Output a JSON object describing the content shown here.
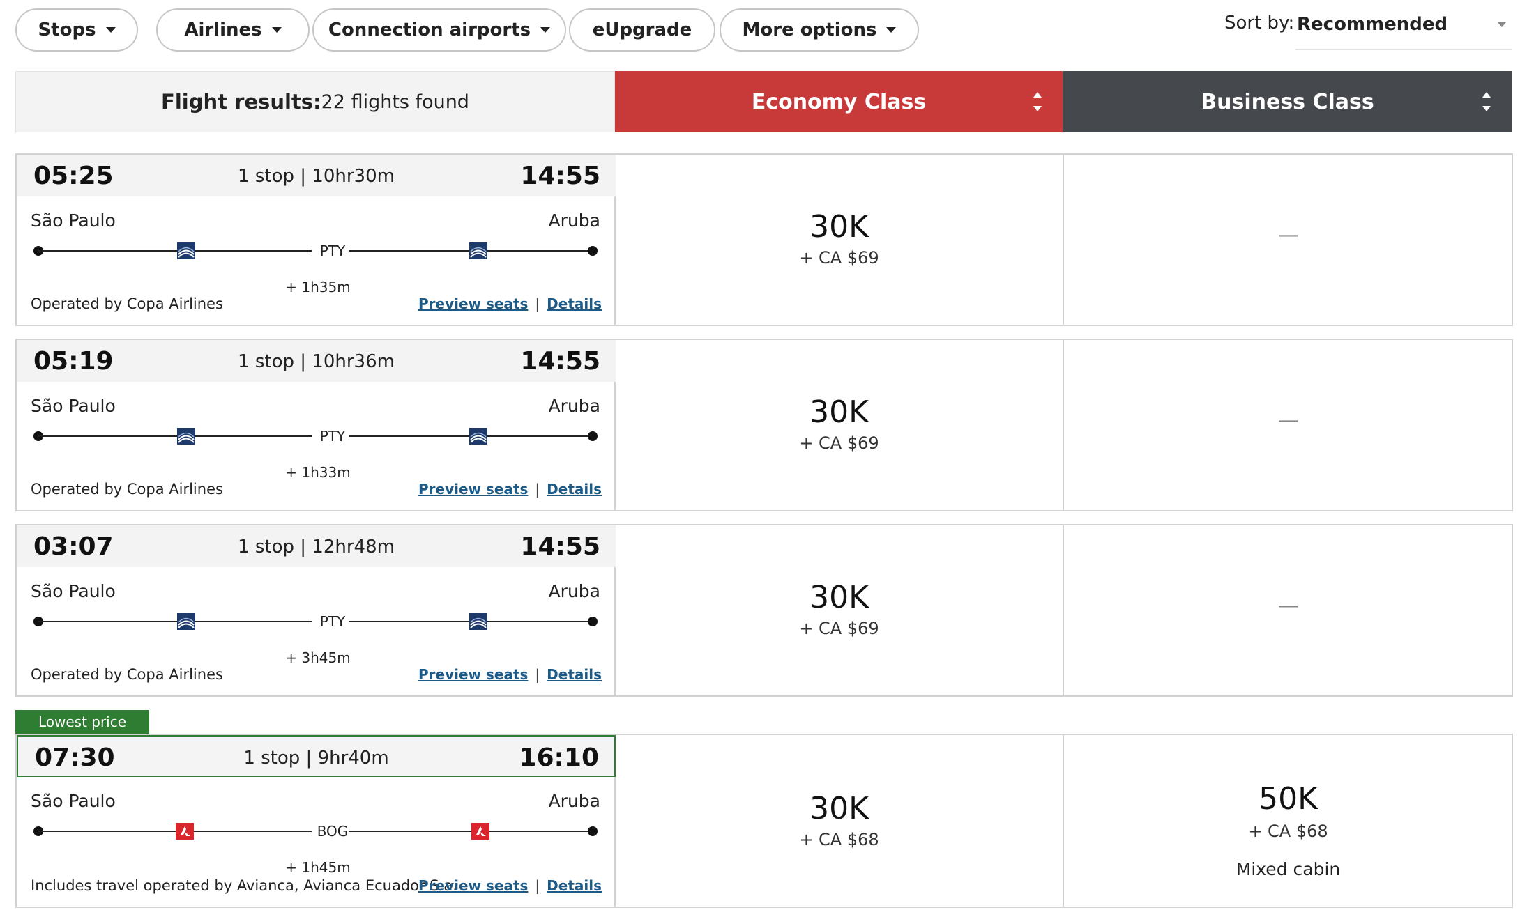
{
  "filters": {
    "stops": "Stops",
    "airlines": "Airlines",
    "connection_airports": "Connection airports",
    "eupgrade": "eUpgrade",
    "more_options": "More options"
  },
  "sort": {
    "label": "Sort by:",
    "value": "Recommended"
  },
  "header": {
    "title": "Flight results:",
    "count": "22 flights found",
    "economy": "Economy Class",
    "business": "Business Class"
  },
  "colors": {
    "economy": "#c8393a",
    "business": "#45494d",
    "lowest_badge": "#2e7d32",
    "link": "#1d5a86"
  },
  "flights": [
    {
      "depart": "05:25",
      "arrive": "14:55",
      "duration": "1 stop | 10hr30m",
      "origin": "São Paulo",
      "destination": "Aruba",
      "stop": "PTY",
      "layover": "+ 1h35m",
      "operated": "Operated by Copa Airlines",
      "airline_icon": "copa-logo-icon",
      "economy_miles": "30K",
      "economy_tax": "+ CA $69",
      "business": "—"
    },
    {
      "depart": "05:19",
      "arrive": "14:55",
      "duration": "1 stop | 10hr36m",
      "origin": "São Paulo",
      "destination": "Aruba",
      "stop": "PTY",
      "layover": "+ 1h33m",
      "operated": "Operated by Copa Airlines",
      "airline_icon": "copa-logo-icon",
      "economy_miles": "30K",
      "economy_tax": "+ CA $69",
      "business": "—"
    },
    {
      "depart": "03:07",
      "arrive": "14:55",
      "duration": "1 stop | 12hr48m",
      "origin": "São Paulo",
      "destination": "Aruba",
      "stop": "PTY",
      "layover": "+ 3h45m",
      "operated": "Operated by Copa Airlines",
      "airline_icon": "copa-logo-icon",
      "economy_miles": "30K",
      "economy_tax": "+ CA $69",
      "business": "—"
    },
    {
      "badge": "Lowest price",
      "depart": "07:30",
      "arrive": "16:10",
      "duration": "1 stop | 9hr40m",
      "origin": "São Paulo",
      "destination": "Aruba",
      "stop": "BOG",
      "layover": "+ 1h45m",
      "operated": "Includes travel operated by Avianca, Avianca Ecuador S.a.",
      "airline_icon": "avianca-logo-icon",
      "economy_miles": "30K",
      "economy_tax": "+ CA $68",
      "business_miles": "50K",
      "business_tax": "+ CA $68",
      "business_note": "Mixed cabin"
    }
  ],
  "links": {
    "preview": "Preview seats",
    "separator": "|",
    "details": "Details"
  }
}
